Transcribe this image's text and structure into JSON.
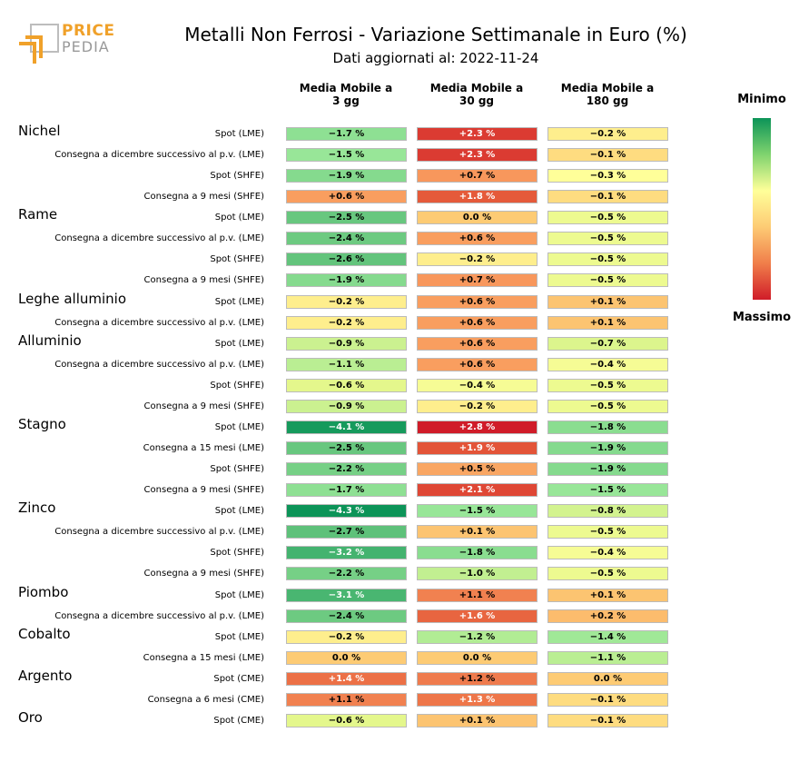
{
  "logo": {
    "word1": "PRICE",
    "word2": "PEDIA"
  },
  "chart_data": {
    "type": "table",
    "title": "Metalli Non Ferrosi - Variazione Settimanale in Euro (%)",
    "subtitle": "Dati aggiornati al: 2022-11-24",
    "columns": [
      "Media Mobile a\n3 gg",
      "Media Mobile a\n30 gg",
      "Media Mobile a\n180 gg"
    ],
    "legend": {
      "min_label": "Minimo",
      "max_label": "Massimo"
    },
    "groups": [
      {
        "name": "Nichel",
        "rows": [
          {
            "label": "Spot (LME)",
            "values": [
              -1.7,
              2.3,
              -0.2
            ]
          },
          {
            "label": "Consegna a dicembre successivo al p.v. (LME)",
            "values": [
              -1.5,
              2.3,
              -0.1
            ]
          },
          {
            "label": "Spot (SHFE)",
            "values": [
              -1.9,
              0.7,
              -0.3
            ]
          },
          {
            "label": "Consegna a 9 mesi (SHFE)",
            "values": [
              0.6,
              1.8,
              -0.1
            ]
          }
        ]
      },
      {
        "name": "Rame",
        "rows": [
          {
            "label": "Spot (LME)",
            "values": [
              -2.5,
              0.0,
              -0.5
            ]
          },
          {
            "label": "Consegna a dicembre successivo al p.v. (LME)",
            "values": [
              -2.4,
              0.6,
              -0.5
            ]
          },
          {
            "label": "Spot (SHFE)",
            "values": [
              -2.6,
              -0.2,
              -0.5
            ]
          },
          {
            "label": "Consegna a 9 mesi (SHFE)",
            "values": [
              -1.9,
              0.7,
              -0.5
            ]
          }
        ]
      },
      {
        "name": "Leghe alluminio",
        "rows": [
          {
            "label": "Spot (LME)",
            "values": [
              -0.2,
              0.6,
              0.1
            ]
          },
          {
            "label": "Consegna a dicembre successivo al p.v. (LME)",
            "values": [
              -0.2,
              0.6,
              0.1
            ]
          }
        ]
      },
      {
        "name": "Alluminio",
        "rows": [
          {
            "label": "Spot (LME)",
            "values": [
              -0.9,
              0.6,
              -0.7
            ]
          },
          {
            "label": "Consegna a dicembre successivo al p.v. (LME)",
            "values": [
              -1.1,
              0.6,
              -0.4
            ]
          },
          {
            "label": "Spot (SHFE)",
            "values": [
              -0.6,
              -0.4,
              -0.5
            ]
          },
          {
            "label": "Consegna a 9 mesi (SHFE)",
            "values": [
              -0.9,
              -0.2,
              -0.5
            ]
          }
        ]
      },
      {
        "name": "Stagno",
        "rows": [
          {
            "label": "Spot (LME)",
            "values": [
              -4.1,
              2.8,
              -1.8
            ]
          },
          {
            "label": "Consegna a 15 mesi (LME)",
            "values": [
              -2.5,
              1.9,
              -1.9
            ]
          },
          {
            "label": "Spot (SHFE)",
            "values": [
              -2.2,
              0.5,
              -1.9
            ]
          },
          {
            "label": "Consegna a 9 mesi (SHFE)",
            "values": [
              -1.7,
              2.1,
              -1.5
            ]
          }
        ]
      },
      {
        "name": "Zinco",
        "rows": [
          {
            "label": "Spot (LME)",
            "values": [
              -4.3,
              -1.5,
              -0.8
            ]
          },
          {
            "label": "Consegna a dicembre successivo al p.v. (LME)",
            "values": [
              -2.7,
              0.1,
              -0.5
            ]
          },
          {
            "label": "Spot (SHFE)",
            "values": [
              -3.2,
              -1.8,
              -0.4
            ]
          },
          {
            "label": "Consegna a 9 mesi (SHFE)",
            "values": [
              -2.2,
              -1.0,
              -0.5
            ]
          }
        ]
      },
      {
        "name": "Piombo",
        "rows": [
          {
            "label": "Spot (LME)",
            "values": [
              -3.1,
              1.1,
              0.1
            ]
          },
          {
            "label": "Consegna a dicembre successivo al p.v. (LME)",
            "values": [
              -2.4,
              1.6,
              0.2
            ]
          }
        ]
      },
      {
        "name": "Cobalto",
        "rows": [
          {
            "label": "Spot (LME)",
            "values": [
              -0.2,
              -1.2,
              -1.4
            ]
          },
          {
            "label": "Consegna a 15 mesi (LME)",
            "values": [
              0.0,
              0.0,
              -1.1
            ]
          }
        ]
      },
      {
        "name": "Argento",
        "rows": [
          {
            "label": "Spot (CME)",
            "values": [
              1.4,
              1.2,
              0.0
            ]
          },
          {
            "label": "Consegna a 6 mesi (CME)",
            "values": [
              1.1,
              1.3,
              -0.1
            ]
          }
        ]
      },
      {
        "name": "Oro",
        "rows": [
          {
            "label": "Spot (CME)",
            "values": [
              -0.6,
              0.1,
              -0.1
            ]
          }
        ]
      }
    ]
  }
}
